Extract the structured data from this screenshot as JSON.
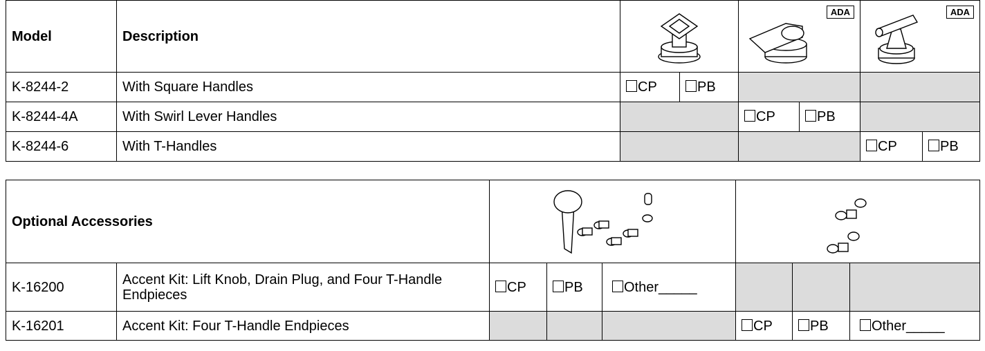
{
  "models_table": {
    "header": {
      "model": "Model",
      "description": "Description",
      "badges": [
        "ADA",
        "ADA"
      ]
    },
    "rows": [
      {
        "model": "K-8244-2",
        "description": "With Square Handles",
        "options": [
          "CP",
          "PB"
        ]
      },
      {
        "model": "K-8244-4A",
        "description": "With Swirl Lever Handles",
        "options": [
          "CP",
          "PB"
        ]
      },
      {
        "model": "K-8244-6",
        "description": "With T-Handles",
        "options": [
          "CP",
          "PB"
        ]
      }
    ]
  },
  "accessories_table": {
    "title": "Optional Accessories",
    "rows": [
      {
        "model": "K-16200",
        "description": "Accent Kit: Lift Knob, Drain Plug, and Four T-Handle Endpieces",
        "options": [
          "CP",
          "PB",
          "Other_____"
        ]
      },
      {
        "model": "K-16201",
        "description": "Accent Kit: Four T-Handle Endpieces",
        "options": [
          "CP",
          "PB",
          "Other_____"
        ]
      }
    ]
  }
}
